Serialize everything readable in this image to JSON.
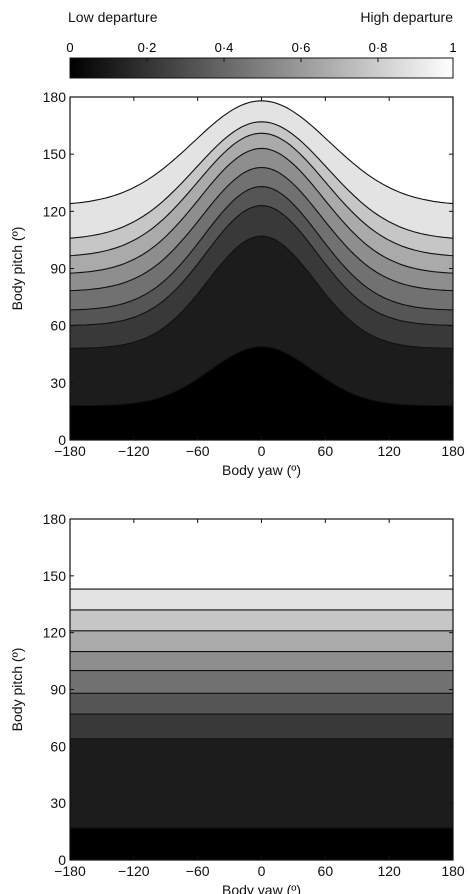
{
  "colorbar": {
    "label_low": "Low departure",
    "label_high": "High departure",
    "ticks": [
      "0",
      "0·2",
      "0·4",
      "0·6",
      "0·8",
      "1"
    ],
    "range": [
      0,
      1
    ],
    "color_low": "#000000",
    "color_high": "#ffffff"
  },
  "chart_data": [
    {
      "type": "contour",
      "xlabel": "Body yaw (º)",
      "ylabel": "Body pitch (º)",
      "xlim": [
        -180,
        180
      ],
      "ylim": [
        0,
        180
      ],
      "x_ticks": [
        "−180",
        "−120",
        "−60",
        "0",
        "60",
        "120",
        "180"
      ],
      "y_ticks": [
        "0",
        "30",
        "60",
        "90",
        "120",
        "150",
        "180"
      ],
      "x_tick_values": [
        -180,
        -120,
        -60,
        0,
        60,
        120,
        180
      ],
      "y_tick_values": [
        0,
        30,
        60,
        90,
        120,
        150,
        180
      ],
      "levels": [
        0.1,
        0.2,
        0.3,
        0.4,
        0.5,
        0.6,
        0.7,
        0.8,
        0.9
      ],
      "contours": [
        {
          "level": 0.1,
          "edge_pitch": 18,
          "center_pitch": 49,
          "width": 48
        },
        {
          "level": 0.2,
          "edge_pitch": 48,
          "center_pitch": 107,
          "width": 50
        },
        {
          "level": 0.3,
          "edge_pitch": 60,
          "center_pitch": 123,
          "width": 52
        },
        {
          "level": 0.4,
          "edge_pitch": 68,
          "center_pitch": 133,
          "width": 54
        },
        {
          "level": 0.5,
          "edge_pitch": 78,
          "center_pitch": 143,
          "width": 56
        },
        {
          "level": 0.6,
          "edge_pitch": 87,
          "center_pitch": 153,
          "width": 58
        },
        {
          "level": 0.7,
          "edge_pitch": 96,
          "center_pitch": 161,
          "width": 60
        },
        {
          "level": 0.8,
          "edge_pitch": 105,
          "center_pitch": 167,
          "width": 62
        },
        {
          "level": 0.9,
          "edge_pitch": 123,
          "center_pitch": 178,
          "width": 64
        }
      ]
    },
    {
      "type": "contour",
      "xlabel": "Body yaw (º)",
      "ylabel": "Body pitch (º)",
      "xlim": [
        -180,
        180
      ],
      "ylim": [
        0,
        180
      ],
      "x_ticks": [
        "−180",
        "−120",
        "−60",
        "0",
        "60",
        "120",
        "180"
      ],
      "y_ticks": [
        "0",
        "30",
        "60",
        "90",
        "120",
        "150",
        "180"
      ],
      "x_tick_values": [
        -180,
        -120,
        -60,
        0,
        60,
        120,
        180
      ],
      "y_tick_values": [
        0,
        30,
        60,
        90,
        120,
        150,
        180
      ],
      "levels": [
        0.1,
        0.2,
        0.3,
        0.4,
        0.5,
        0.6,
        0.7,
        0.8,
        0.9
      ],
      "contours": [
        {
          "level": 0.1,
          "edge_pitch": 17,
          "center_pitch": 17,
          "width": 1
        },
        {
          "level": 0.2,
          "edge_pitch": 64,
          "center_pitch": 64,
          "width": 1
        },
        {
          "level": 0.3,
          "edge_pitch": 77,
          "center_pitch": 77,
          "width": 1
        },
        {
          "level": 0.4,
          "edge_pitch": 88,
          "center_pitch": 88,
          "width": 1
        },
        {
          "level": 0.5,
          "edge_pitch": 100,
          "center_pitch": 100,
          "width": 1
        },
        {
          "level": 0.6,
          "edge_pitch": 110,
          "center_pitch": 110,
          "width": 1
        },
        {
          "level": 0.7,
          "edge_pitch": 121,
          "center_pitch": 121,
          "width": 1
        },
        {
          "level": 0.8,
          "edge_pitch": 132,
          "center_pitch": 132,
          "width": 1
        },
        {
          "level": 0.9,
          "edge_pitch": 143,
          "center_pitch": 143,
          "width": 1
        }
      ]
    }
  ]
}
